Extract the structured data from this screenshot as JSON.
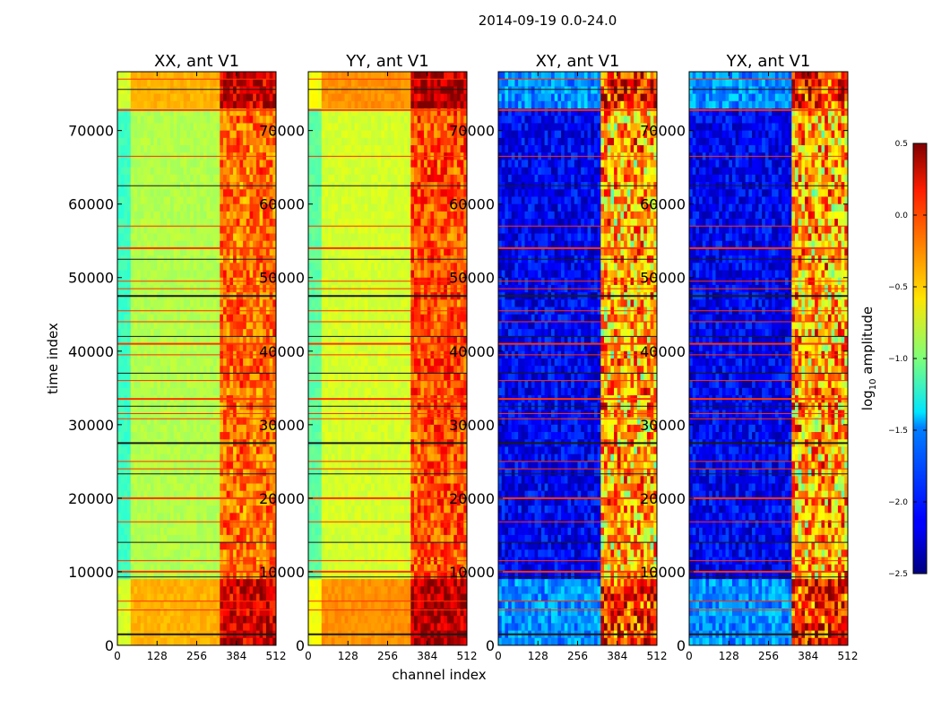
{
  "figure": {
    "suptitle": "2014-09-19 0.0-24.0",
    "xlabel": "channel index",
    "ylabel": "time index"
  },
  "chart_data": {
    "type": "heatmap",
    "title": "2014-09-19 0.0-24.0",
    "xlabel": "channel index",
    "ylabel": "time index",
    "xlim": [
      0,
      512
    ],
    "ylim": [
      0,
      78000
    ],
    "xticks": [
      0,
      128,
      256,
      384,
      512
    ],
    "xtick_labels": [
      "0",
      "128",
      "256",
      "384",
      "512"
    ],
    "yticks": [
      0,
      10000,
      20000,
      30000,
      40000,
      50000,
      60000,
      70000
    ],
    "ytick_labels": [
      "0",
      "10000",
      "20000",
      "30000",
      "40000",
      "50000",
      "60000",
      "70000"
    ],
    "panels": [
      {
        "title": "XX, ant V1",
        "kind": "auto",
        "base_level": -0.85
      },
      {
        "title": "YY, ant V1",
        "kind": "auto",
        "base_level": -0.75
      },
      {
        "title": "XY, ant V1",
        "kind": "cross",
        "base_level": -2.15
      },
      {
        "title": "YX, ant V1",
        "kind": "cross",
        "base_level": -2.15
      }
    ],
    "rfi_band_channels": [
      330,
      512
    ],
    "flagged_time_rows": [
      1500,
      4800,
      6000,
      9300,
      10000,
      11500,
      14000,
      16800,
      20000,
      23300,
      24000,
      25000,
      27500,
      30800,
      31500,
      32500,
      33500,
      36000,
      37000,
      39500,
      41000,
      42000,
      44000,
      45500,
      47500,
      48500,
      49500,
      52500,
      54000,
      57000,
      62500,
      66500,
      72800,
      75600,
      77000
    ],
    "colorbar": {
      "label": "log",
      "label_sub": "10",
      "label_tail": " amplitude",
      "range": [
        -2.5,
        0.5
      ],
      "ticks": [
        0.5,
        0.0,
        -0.5,
        -1.0,
        -1.5,
        -2.0,
        -2.5
      ],
      "tick_labels": [
        "0.5",
        "0.0",
        "−0.5",
        "−1.0",
        "−1.5",
        "−2.0",
        "−2.5"
      ],
      "colormap": "jet"
    }
  }
}
